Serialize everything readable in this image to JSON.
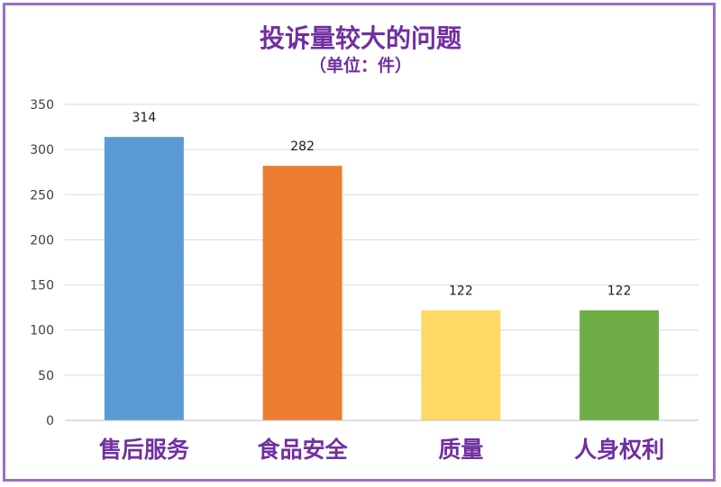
{
  "chart_data": {
    "type": "bar",
    "title": "投诉量较大的问题",
    "subtitle": "（单位：件）",
    "categories": [
      "售后服务",
      "食品安全",
      "质量",
      "人身权利"
    ],
    "values": [
      314,
      282,
      122,
      122
    ],
    "ylim": [
      0,
      350
    ],
    "yticks": [
      0,
      50,
      100,
      150,
      200,
      250,
      300,
      350
    ],
    "colors": [
      "#5b9bd5",
      "#ed7d31",
      "#ffd966",
      "#70ad47"
    ],
    "grid": true,
    "legend": "none"
  }
}
